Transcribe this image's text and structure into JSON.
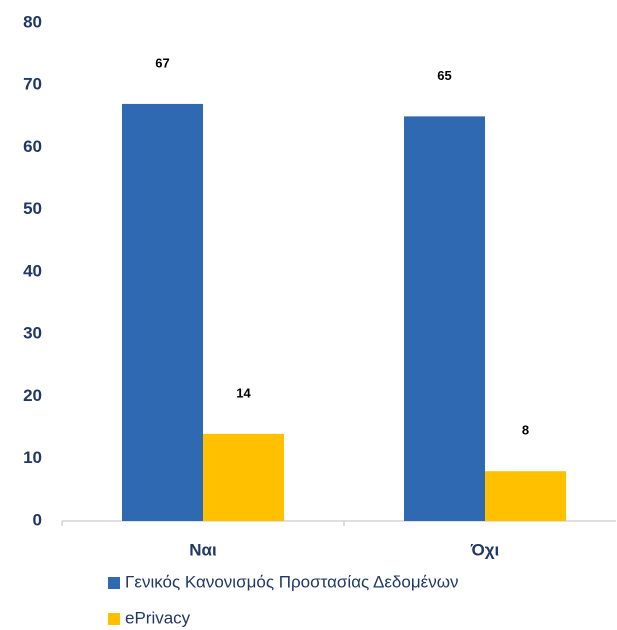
{
  "chart_data": {
    "type": "bar",
    "categories": [
      "Ναι",
      "Όχι"
    ],
    "series": [
      {
        "name": "Γενικός Κανονισμός Προστασίας Δεδομένων",
        "color": "#2e69b2",
        "values": [
          67,
          65
        ]
      },
      {
        "name": "ePrivacy",
        "color": "#ffc000",
        "values": [
          14,
          8
        ]
      }
    ],
    "ylim": [
      0,
      80
    ],
    "yticks": [
      0,
      10,
      20,
      30,
      40,
      50,
      60,
      70,
      80
    ],
    "grid": false
  }
}
